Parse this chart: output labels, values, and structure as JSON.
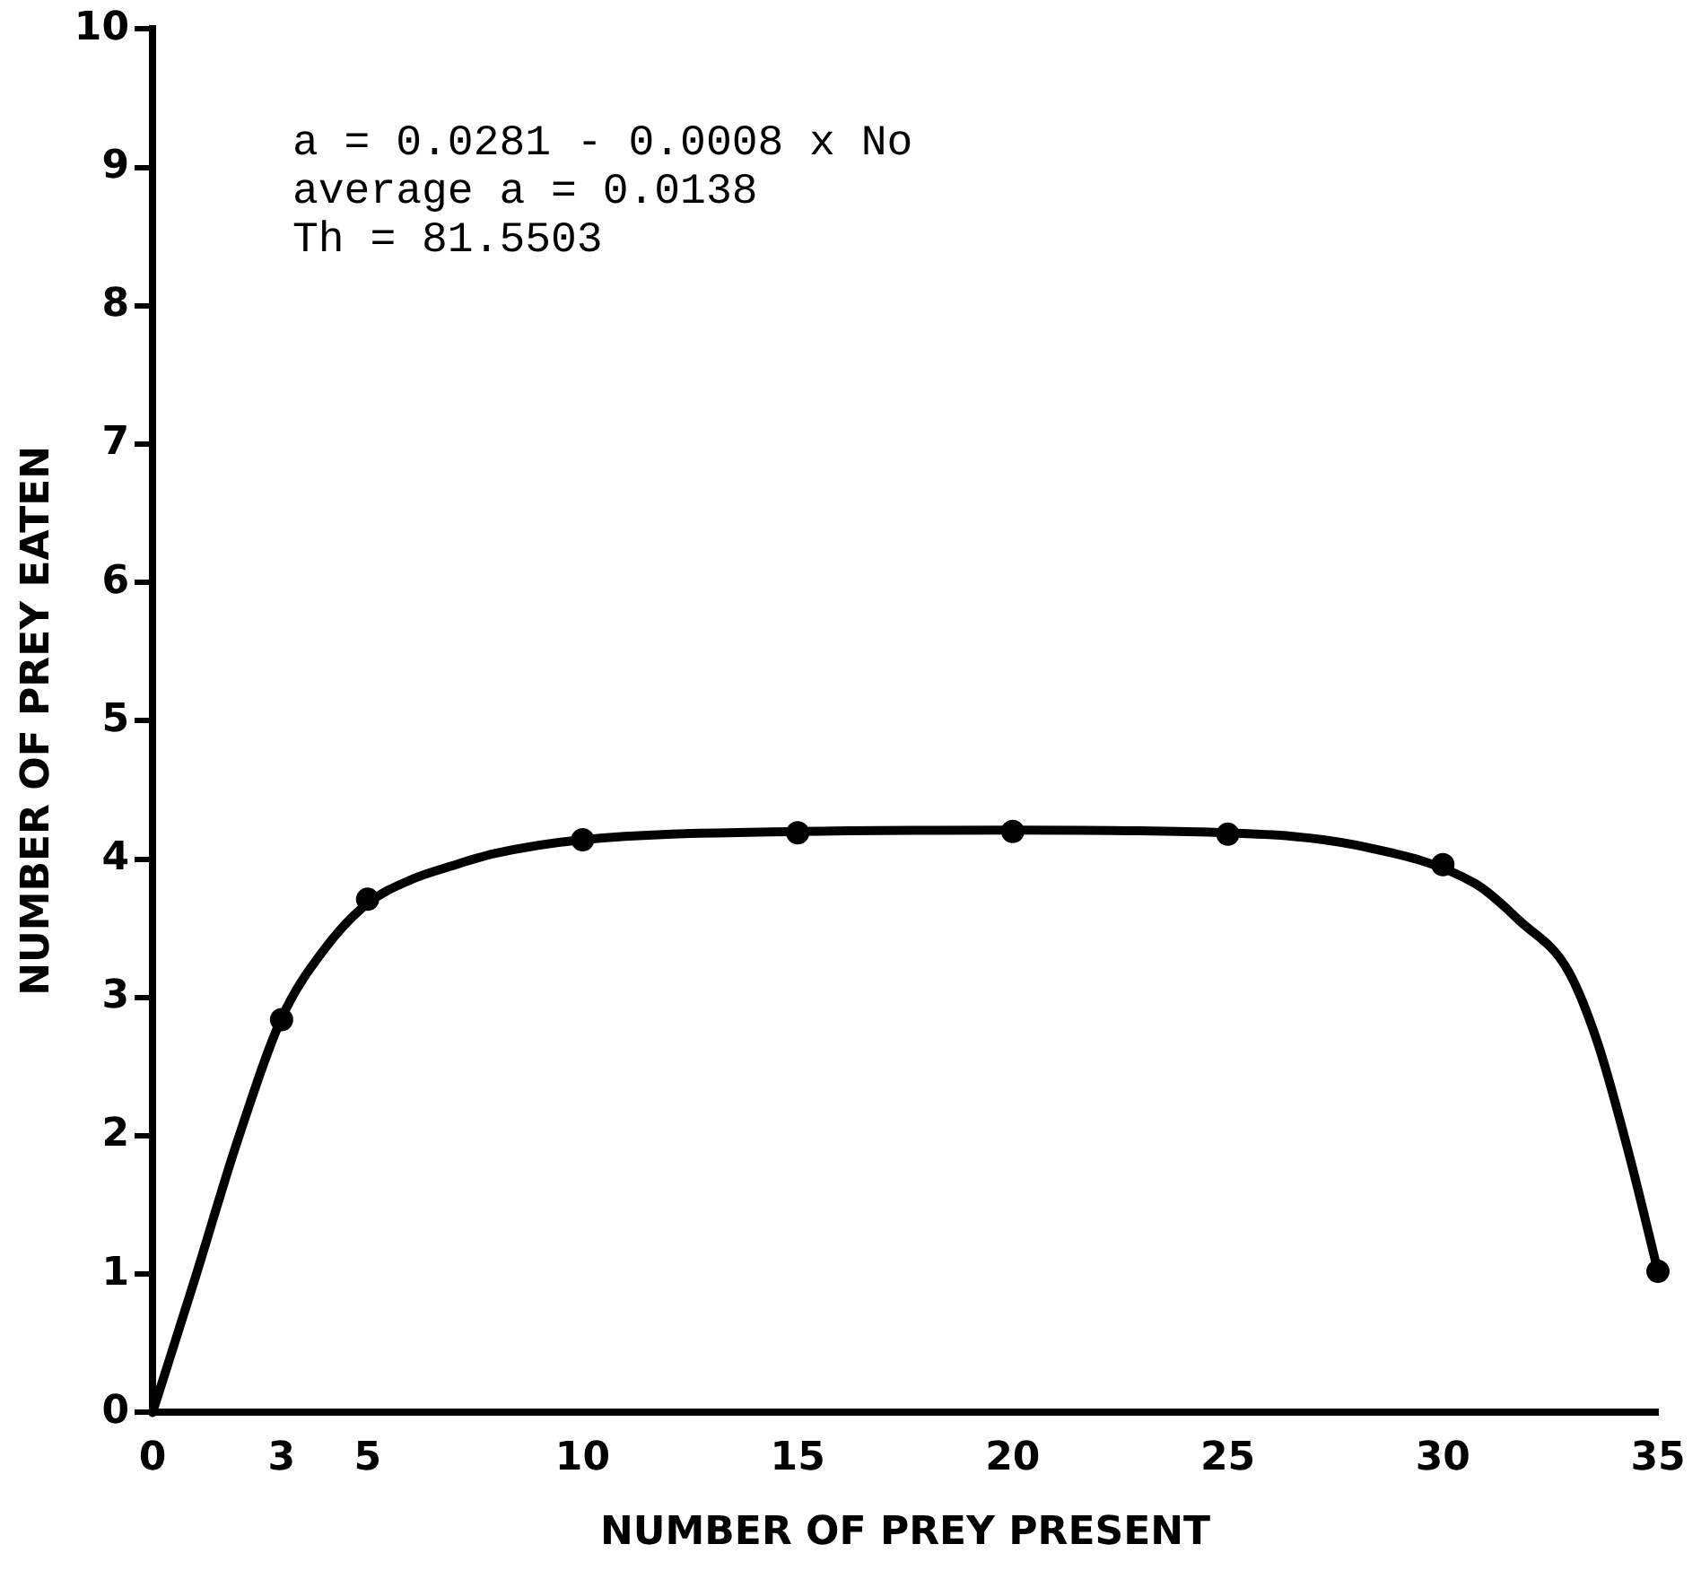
{
  "chart_data": {
    "type": "scatter",
    "xlabel": "NUMBER OF PREY PRESENT",
    "ylabel": "NUMBER OF PREY EATEN",
    "annotations": [
      "a = 0.0281 - 0.0008 x No",
      "average a = 0.0138",
      "Th = 81.5503"
    ],
    "xlim": [
      0,
      35
    ],
    "xticks": [
      0,
      3,
      5,
      10,
      15,
      20,
      25,
      30,
      35
    ],
    "ylim": [
      0,
      10
    ],
    "yticks": [
      0,
      1,
      2,
      3,
      4,
      5,
      6,
      7,
      8,
      9,
      10
    ],
    "grid": false,
    "legend": false,
    "marker": "circle",
    "x": [
      3,
      5,
      10,
      15,
      20,
      25,
      30,
      35
    ],
    "series": [
      {
        "color": "#000000",
        "values": [
          2.84,
          3.71,
          4.14,
          4.19,
          4.2,
          4.18,
          3.96,
          1.02
        ]
      },
      {
        "type": "line",
        "color": "#000000",
        "marker": "none",
        "x": [
          0,
          1,
          1.94,
          3,
          4,
          5,
          6,
          6.95,
          7.95,
          10,
          15,
          20,
          25,
          28,
          30.77,
          31.8,
          32.9,
          33.6,
          34.35,
          35
        ],
        "values": [
          0,
          0.98,
          1.93,
          2.85,
          3.35,
          3.68,
          3.85,
          3.95,
          4.04,
          4.14,
          4.2,
          4.21,
          4.19,
          4.1,
          3.82,
          3.55,
          3.2,
          2.67,
          1.84,
          1.02
        ]
      }
    ]
  }
}
